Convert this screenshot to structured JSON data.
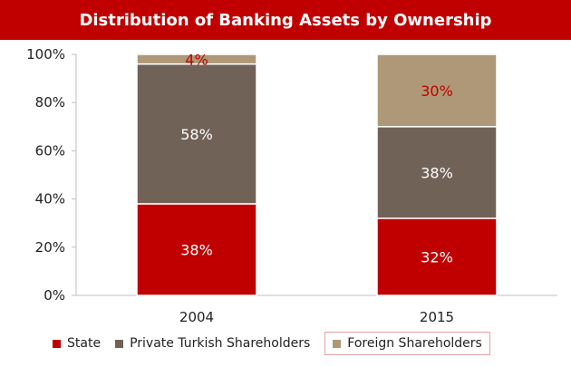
{
  "colors": {
    "title_bg": "#C00000",
    "state": "#C00000",
    "private": "#716258",
    "foreign": "#AE9877",
    "highlight_label": "#C00000"
  },
  "chart_data": {
    "type": "bar",
    "stacked": true,
    "title": "Distribution of Banking Assets by Ownership",
    "categories": [
      "2004",
      "2015"
    ],
    "series": [
      {
        "name": "State",
        "values": [
          38,
          32
        ],
        "labels": [
          "38%",
          "32%"
        ]
      },
      {
        "name": "Private Turkish Shareholders",
        "values": [
          58,
          38
        ],
        "labels": [
          "58%",
          "38%"
        ]
      },
      {
        "name": "Foreign Shareholders",
        "values": [
          4,
          30
        ],
        "labels": [
          "4%",
          "30%"
        ]
      }
    ],
    "ylim": [
      0,
      100
    ],
    "yticks": [
      "0%",
      "20%",
      "40%",
      "60%",
      "80%",
      "100%"
    ],
    "grid": false,
    "legend_position": "bottom"
  }
}
